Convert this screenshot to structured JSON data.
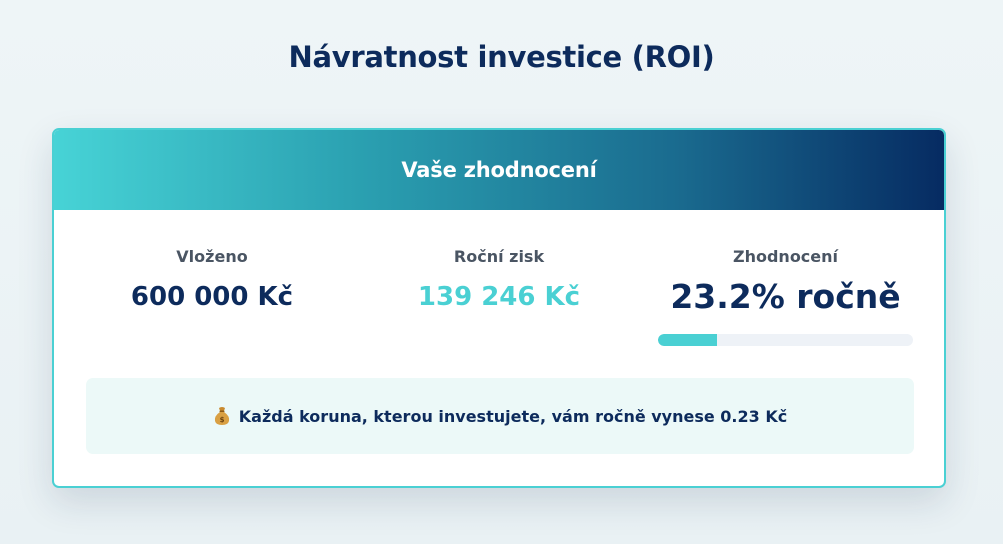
{
  "page": {
    "title": "Návratnost investice (ROI)"
  },
  "card": {
    "header_title": "Vaše zhodnocení",
    "stats": {
      "invested": {
        "label": "Vloženo",
        "value": "600 000 Kč"
      },
      "annual_profit": {
        "label": "Roční zisk",
        "value": "139 246 Kč"
      },
      "appreciation": {
        "label": "Zhodnocení",
        "value": "23.2% ročně",
        "progress_percent": 23.2
      }
    },
    "info": {
      "icon": "money-bag-icon",
      "text": "Každá koruna, kterou investujete, vám ročně vynese 0.23 Kč"
    }
  },
  "colors": {
    "navy": "#0d2b5c",
    "teal": "#4ad0d3",
    "background": "#eef5f7"
  }
}
